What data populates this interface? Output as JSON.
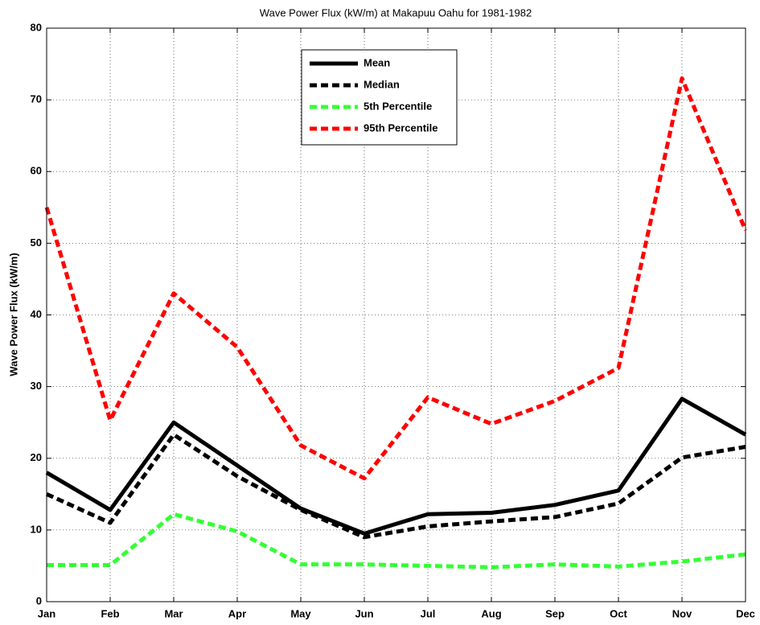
{
  "chart_data": {
    "type": "line",
    "title": "Wave Power Flux (kW/m) at Makapuu Oahu for 1981-1982",
    "ylabel": "Wave Power Flux (kW/m)",
    "categories": [
      "Jan",
      "Feb",
      "Mar",
      "Apr",
      "May",
      "Jun",
      "Jul",
      "Aug",
      "Sep",
      "Oct",
      "Nov",
      "Dec"
    ],
    "series": [
      {
        "name": "Mean",
        "color": "#000000",
        "style": "solid",
        "values": [
          18,
          12.8,
          25,
          19,
          13,
          9.5,
          12.2,
          12.4,
          13.5,
          15.5,
          28.3,
          23.3
        ]
      },
      {
        "name": "Median",
        "color": "#000000",
        "style": "dashed",
        "values": [
          15,
          11,
          23.3,
          17.5,
          12.8,
          9,
          10.5,
          11.2,
          11.8,
          13.7,
          20.1,
          21.6
        ]
      },
      {
        "name": "5th Percentile",
        "color": "#33ff33",
        "style": "dashed",
        "values": [
          5.1,
          5.1,
          12.2,
          9.8,
          5.2,
          5.2,
          5,
          4.8,
          5.2,
          4.9,
          5.6,
          6.6
        ]
      },
      {
        "name": "95th Percentile",
        "color": "#ff0000",
        "style": "dashed",
        "values": [
          55,
          25.3,
          43,
          35.5,
          21.8,
          17.2,
          28.5,
          24.8,
          28,
          32.6,
          73,
          51.8
        ]
      }
    ],
    "ylim": [
      0,
      80
    ],
    "yticks": [
      0,
      10,
      20,
      30,
      40,
      50,
      60,
      70,
      80
    ],
    "grid": true,
    "legend": "upper center"
  }
}
